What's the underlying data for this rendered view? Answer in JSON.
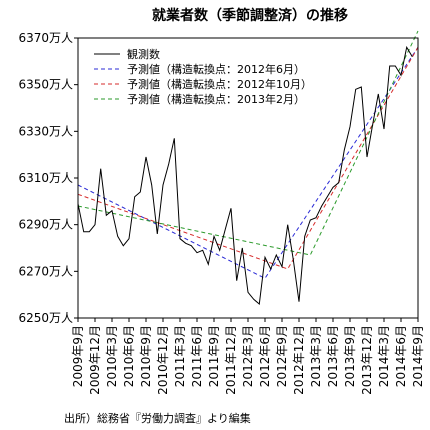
{
  "chart_data": {
    "type": "line",
    "title": "就業者数（季節調整済）の推移",
    "source": "出所）総務省『労働力調査』より編集",
    "xlabel": "",
    "ylabel": "",
    "ylim": [
      6250,
      6370
    ],
    "yticks": [
      6250,
      6270,
      6290,
      6310,
      6330,
      6350,
      6370
    ],
    "ytick_labels": [
      "6250万人",
      "6270万人",
      "6290万人",
      "6310万人",
      "6330万人",
      "6350万人",
      "6370万人"
    ],
    "x_tick_labels": [
      "2009年9月",
      "2009年12月",
      "2010年3月",
      "2010年6月",
      "2010年9月",
      "2010年12月",
      "2011年3月",
      "2011年6月",
      "2011年9月",
      "2011年12月",
      "2012年3月",
      "2012年6月",
      "2012年9月",
      "2012年12月",
      "2013年3月",
      "2013年6月",
      "2013年9月",
      "2013年12月",
      "2014年3月",
      "2014年6月",
      "2014年9月"
    ],
    "x_start": "2009年9月",
    "x_end": "2014年9月",
    "grid": false,
    "legend": "top-left",
    "series": [
      {
        "name": "観測数",
        "color": "#000000",
        "dash": "solid",
        "points": [
          [
            0,
            6299
          ],
          [
            1,
            6287
          ],
          [
            2,
            6287
          ],
          [
            3,
            6290
          ],
          [
            4,
            6314
          ],
          [
            5,
            6294
          ],
          [
            6,
            6296
          ],
          [
            7,
            6285
          ],
          [
            8,
            6281
          ],
          [
            9,
            6284
          ],
          [
            10,
            6302
          ],
          [
            11,
            6304
          ],
          [
            12,
            6319
          ],
          [
            13,
            6307
          ],
          [
            14,
            6286
          ],
          [
            15,
            6307
          ],
          [
            16,
            6316
          ],
          [
            17,
            6327
          ],
          [
            18,
            6284
          ],
          [
            19,
            6282
          ],
          [
            20,
            6281
          ],
          [
            21,
            6278
          ],
          [
            22,
            6279
          ],
          [
            23,
            6273
          ],
          [
            24,
            6285
          ],
          [
            25,
            6279
          ],
          [
            26,
            6288
          ],
          [
            27,
            6297
          ],
          [
            28,
            6266
          ],
          [
            29,
            6280
          ],
          [
            30,
            6261
          ],
          [
            31,
            6258
          ],
          [
            32,
            6256
          ],
          [
            33,
            6276
          ],
          [
            34,
            6271
          ],
          [
            35,
            6277
          ],
          [
            36,
            6272
          ],
          [
            37,
            6290
          ],
          [
            38,
            6275
          ],
          [
            39,
            6257
          ],
          [
            40,
            6285
          ],
          [
            41,
            6292
          ],
          [
            42,
            6293
          ],
          [
            43,
            6298
          ],
          [
            44,
            6302
          ],
          [
            45,
            6306
          ],
          [
            46,
            6308
          ],
          [
            47,
            6322
          ],
          [
            48,
            6332
          ],
          [
            49,
            6348
          ],
          [
            50,
            6349
          ],
          [
            51,
            6319
          ],
          [
            52,
            6333
          ],
          [
            53,
            6346
          ],
          [
            54,
            6331
          ],
          [
            55,
            6358
          ],
          [
            56,
            6358
          ],
          [
            57,
            6354
          ],
          [
            58,
            6366
          ],
          [
            59,
            6362
          ]
        ]
      },
      {
        "name": "予測値（構造転換点：2012年6月）",
        "color": "#2b2bd6",
        "dash": "dashed",
        "points": [
          [
            0,
            6307
          ],
          [
            33,
            6267
          ],
          [
            60,
            6366
          ]
        ]
      },
      {
        "name": "予測値（構造転換点：2012年10月）",
        "color": "#d62b2b",
        "dash": "dashed",
        "points": [
          [
            0,
            6303
          ],
          [
            37,
            6271
          ],
          [
            60,
            6366
          ]
        ]
      },
      {
        "name": "予測値（構造転換点：2013年2月）",
        "color": "#2b9a2b",
        "dash": "dashed",
        "points": [
          [
            0,
            6298
          ],
          [
            41,
            6277
          ],
          [
            60,
            6373
          ]
        ]
      }
    ]
  }
}
